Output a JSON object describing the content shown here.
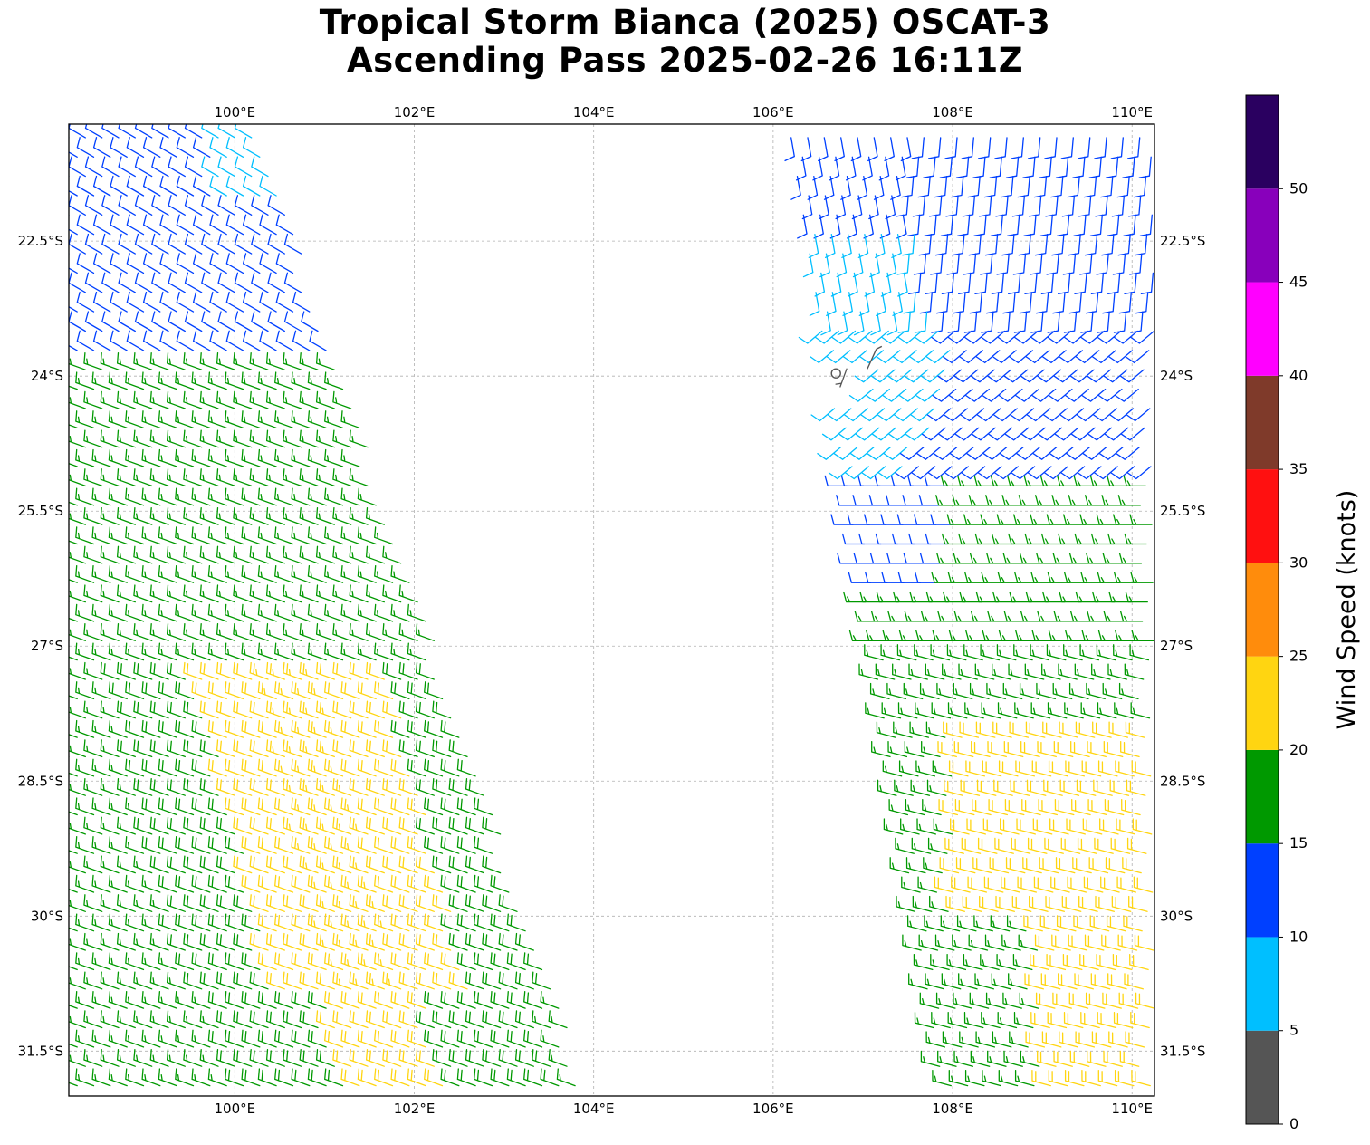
{
  "title": {
    "line1": "Tropical Storm Bianca (2025) OSCAT-3",
    "line2": "Ascending Pass 2025-02-26 16:11Z"
  },
  "map": {
    "lon_range": [
      98.15,
      110.25
    ],
    "lat_range": [
      -32.0,
      -21.2
    ],
    "lon_ticks": [
      {
        "value": 100,
        "label": "100°E"
      },
      {
        "value": 102,
        "label": "102°E"
      },
      {
        "value": 104,
        "label": "104°E"
      },
      {
        "value": 106,
        "label": "106°E"
      },
      {
        "value": 108,
        "label": "108°E"
      },
      {
        "value": 110,
        "label": "110°E"
      }
    ],
    "lat_ticks": [
      {
        "value": -22.5,
        "label": "22.5°S"
      },
      {
        "value": -24,
        "label": "24°S"
      },
      {
        "value": -25.5,
        "label": "25.5°S"
      },
      {
        "value": -27,
        "label": "27°S"
      },
      {
        "value": -28.5,
        "label": "28.5°S"
      },
      {
        "value": -30,
        "label": "30°S"
      },
      {
        "value": -31.5,
        "label": "31.5°S"
      }
    ],
    "gridlines": true,
    "grid_color": "#b0b0b0",
    "swaths": [
      {
        "name": "west",
        "lat_top": -21.35,
        "lat_bottom": -31.95,
        "lon_left_top": 98.15,
        "lon_left_bottom": 98.15,
        "lon_right_top": 100.3,
        "lon_right_bottom": 103.95
      },
      {
        "name": "east",
        "lat_top": -21.35,
        "lat_bottom": -31.95,
        "lon_left_top": 106.2,
        "lon_left_bottom": 107.9,
        "lon_right_top": 110.25,
        "lon_right_bottom": 110.25
      }
    ],
    "calm_marker": {
      "lon": 106.7,
      "lat": -23.97,
      "color": "#555555"
    }
  },
  "colorbar": {
    "label": "Wind Speed (knots)",
    "ticks": [
      {
        "value": 0,
        "label": "0"
      },
      {
        "value": 5,
        "label": "5"
      },
      {
        "value": 10,
        "label": "10"
      },
      {
        "value": 15,
        "label": "15"
      },
      {
        "value": 20,
        "label": "20"
      },
      {
        "value": 25,
        "label": "25"
      },
      {
        "value": 30,
        "label": "30"
      },
      {
        "value": 35,
        "label": "35"
      },
      {
        "value": 40,
        "label": "40"
      },
      {
        "value": 45,
        "label": "45"
      },
      {
        "value": 50,
        "label": "50"
      }
    ],
    "bins": [
      {
        "min": 0,
        "max": 5,
        "color": "#555555"
      },
      {
        "min": 5,
        "max": 10,
        "color": "#00bfff"
      },
      {
        "min": 10,
        "max": 15,
        "color": "#0040ff"
      },
      {
        "min": 15,
        "max": 20,
        "color": "#009900"
      },
      {
        "min": 20,
        "max": 25,
        "color": "#ffd511"
      },
      {
        "min": 25,
        "max": 30,
        "color": "#ff8c0c"
      },
      {
        "min": 30,
        "max": 35,
        "color": "#ff1010"
      },
      {
        "min": 35,
        "max": 40,
        "color": "#7f3a2a"
      },
      {
        "min": 40,
        "max": 45,
        "color": "#ff00ff"
      },
      {
        "min": 45,
        "max": 50,
        "color": "#8800bb"
      },
      {
        "min": 50,
        "max": 55,
        "color": "#2a0060"
      }
    ]
  }
}
